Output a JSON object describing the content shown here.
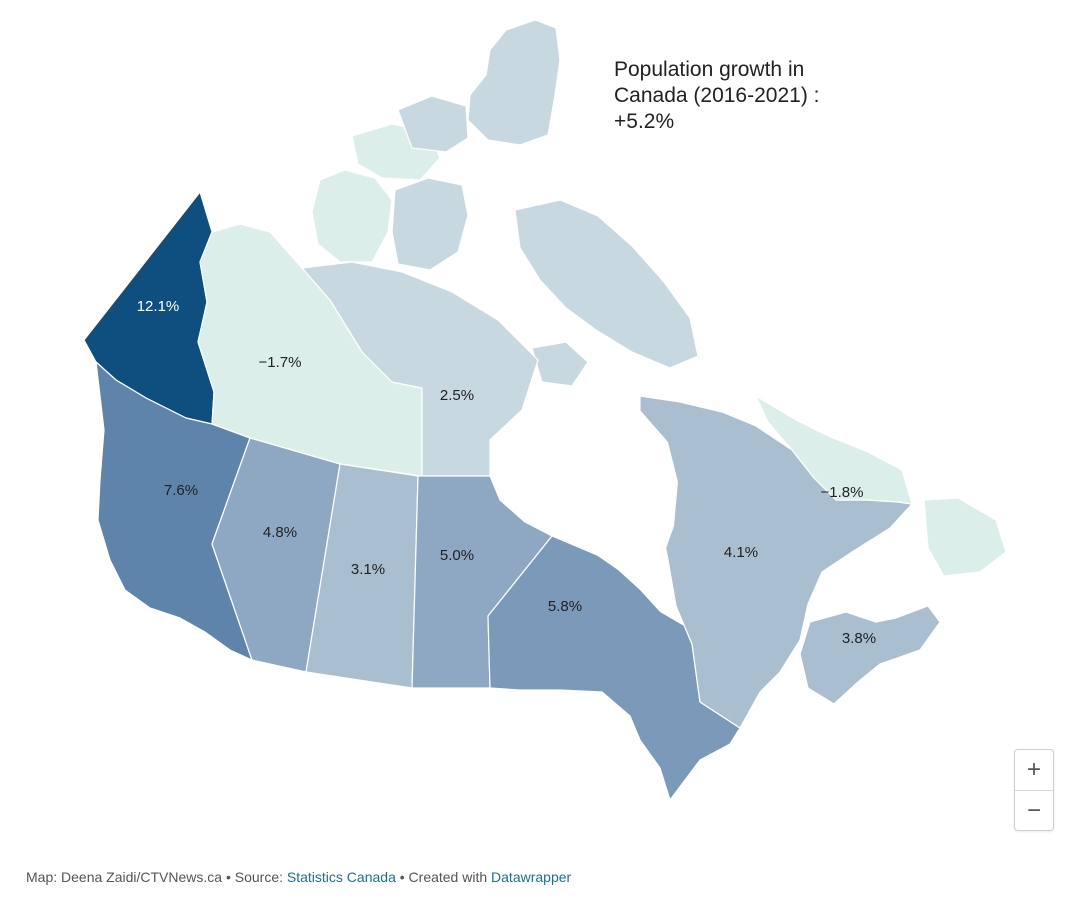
{
  "title": {
    "line1": "Population growth in",
    "line2": "Canada (2016-2021) :",
    "line3": "+5.2%"
  },
  "colors": {
    "scale": [
      "#dbeee9",
      "#c8d8e1",
      "#a9bfcf",
      "#8ea8c3",
      "#7b9ab9",
      "#5f84ab",
      "#0e4f80"
    ],
    "border": "#ffffff",
    "link": "#1a7190"
  },
  "regions": [
    {
      "name": "Yukon",
      "value": 12.1,
      "label": "12.1%"
    },
    {
      "name": "Northwest Territories",
      "value": -1.7,
      "label": "−1.7%"
    },
    {
      "name": "Nunavut",
      "value": 2.5,
      "label": "2.5%"
    },
    {
      "name": "British Columbia",
      "value": 7.6,
      "label": "7.6%"
    },
    {
      "name": "Alberta",
      "value": 4.8,
      "label": "4.8%"
    },
    {
      "name": "Saskatchewan",
      "value": 3.1,
      "label": "3.1%"
    },
    {
      "name": "Manitoba",
      "value": 5.0,
      "label": "5.0%"
    },
    {
      "name": "Ontario",
      "value": 5.8,
      "label": "5.8%"
    },
    {
      "name": "Quebec",
      "value": 4.1,
      "label": "4.1%"
    },
    {
      "name": "Newfoundland and Labrador",
      "value": -1.8,
      "label": "−1.8%"
    },
    {
      "name": "Maritimes",
      "value": 3.8,
      "label": "3.8%"
    }
  ],
  "zoom": {
    "in_label": "+",
    "out_label": "−"
  },
  "footer": {
    "prefix": "Map: Deena Zaidi/CTVNews.ca • Source: ",
    "source_link": "Statistics Canada",
    "middle": " • Created with ",
    "tool_link": "Datawrapper"
  }
}
